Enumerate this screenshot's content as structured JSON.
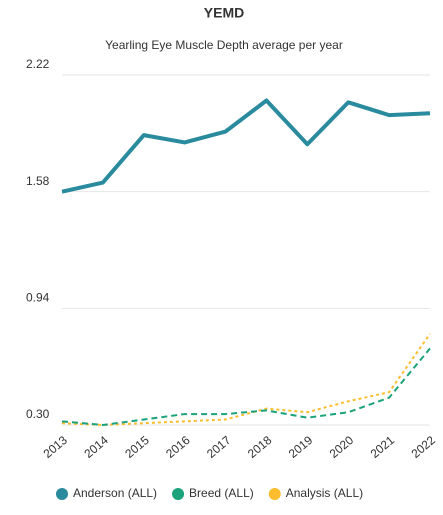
{
  "chart_data": {
    "type": "line",
    "title": "YEMD",
    "subtitle": "Yearling Eye Muscle Depth average per year",
    "categories": [
      "2013",
      "2014",
      "2015",
      "2016",
      "2017",
      "2018",
      "2019",
      "2020",
      "2021",
      "2022"
    ],
    "series": [
      {
        "name": "Anderson (ALL)",
        "color": "#2a8a9e",
        "style": "solid",
        "values": [
          1.58,
          1.63,
          1.89,
          1.85,
          1.91,
          2.08,
          1.84,
          2.07,
          2.0,
          2.01
        ]
      },
      {
        "name": "Breed (ALL)",
        "color": "#1aa37a",
        "style": "dashed",
        "values": [
          0.32,
          0.3,
          0.33,
          0.36,
          0.36,
          0.38,
          0.34,
          0.37,
          0.45,
          0.72
        ]
      },
      {
        "name": "Analysis (ALL)",
        "color": "#fbbd2e",
        "style": "dotted",
        "values": [
          0.31,
          0.3,
          0.31,
          0.32,
          0.33,
          0.39,
          0.37,
          0.43,
          0.48,
          0.8
        ]
      }
    ],
    "ylim": [
      0.3,
      2.22
    ],
    "yticks": [
      {
        "value": 0.3,
        "label": "0.30"
      },
      0.94,
      1.58,
      2.22
    ],
    "grid": true,
    "legend": "bottom"
  }
}
